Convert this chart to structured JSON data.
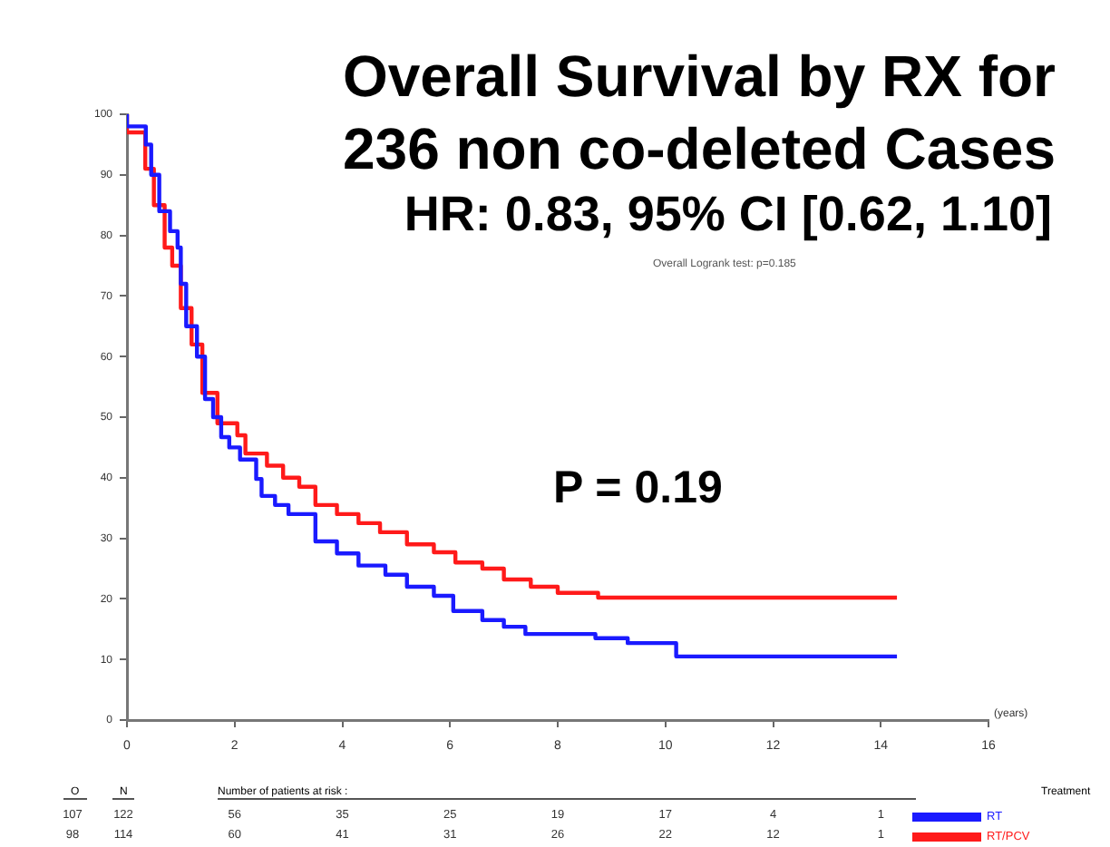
{
  "chart_data": {
    "type": "step",
    "title": "Overall Survival by RX for 236 non co-deleted Cases",
    "subtitle": "HR: 0.83, 95% CI [0.62, 1.10]",
    "xlabel": "(years)",
    "legend_title": "Treatment",
    "legend": "bottom right",
    "annotations": [
      "Overall Logrank test: p=0.185",
      "P = 0.19",
      "O",
      "N",
      "Number of patients at risk :",
      "107 122 56 35 25 19 17 4 1",
      "98 114 60 41 31 26 22 12 1"
    ],
    "xlim": [
      0,
      16
    ],
    "xticks": [
      0,
      2,
      4,
      6,
      8,
      10,
      12,
      14,
      16
    ],
    "ylim": [
      0,
      100
    ],
    "yticks": [
      0,
      10,
      20,
      30,
      40,
      50,
      60,
      70,
      80,
      90,
      100
    ],
    "series": [
      {
        "name": "RT",
        "color": "#1a1aff",
        "x": [
          0,
          0.35,
          0.45,
          0.6,
          0.8,
          0.94,
          1.0,
          1.1,
          1.3,
          1.45,
          1.6,
          1.75,
          1.9,
          2.1,
          2.4,
          2.5,
          2.75,
          3.0,
          3.5,
          3.9,
          4.3,
          4.8,
          5.2,
          5.7,
          6.06,
          6.6,
          7.0,
          7.4,
          8.7,
          9.3,
          10.2,
          11.4,
          14.3
        ],
        "values": [
          100,
          98,
          95,
          90,
          84,
          80.7,
          78,
          72,
          65,
          60,
          53,
          50,
          46.7,
          45,
          43,
          39.8,
          37,
          35.5,
          34,
          29.5,
          27.5,
          25.5,
          24,
          22,
          20.5,
          18,
          16.5,
          15.4,
          14.2,
          13.5,
          12.7,
          10.5,
          10.5
        ]
      },
      {
        "name": "RT/PCV",
        "color": "#ff1a1a",
        "x": [
          0,
          0.34,
          0.5,
          0.7,
          0.84,
          1.0,
          1.2,
          1.4,
          1.68,
          2.05,
          2.2,
          2.6,
          2.9,
          3.2,
          3.5,
          3.9,
          4.3,
          4.7,
          5.2,
          5.7,
          6.1,
          6.6,
          7.0,
          7.5,
          8.0,
          8.75,
          9.36,
          14.3
        ],
        "values": [
          100,
          97,
          91,
          85,
          78,
          75,
          68,
          62,
          54,
          49,
          47,
          44,
          42,
          40,
          38.5,
          35.5,
          34,
          32.5,
          31,
          29,
          27.7,
          26,
          25,
          23.2,
          22,
          21,
          20.2,
          20.2
        ]
      }
    ]
  }
}
